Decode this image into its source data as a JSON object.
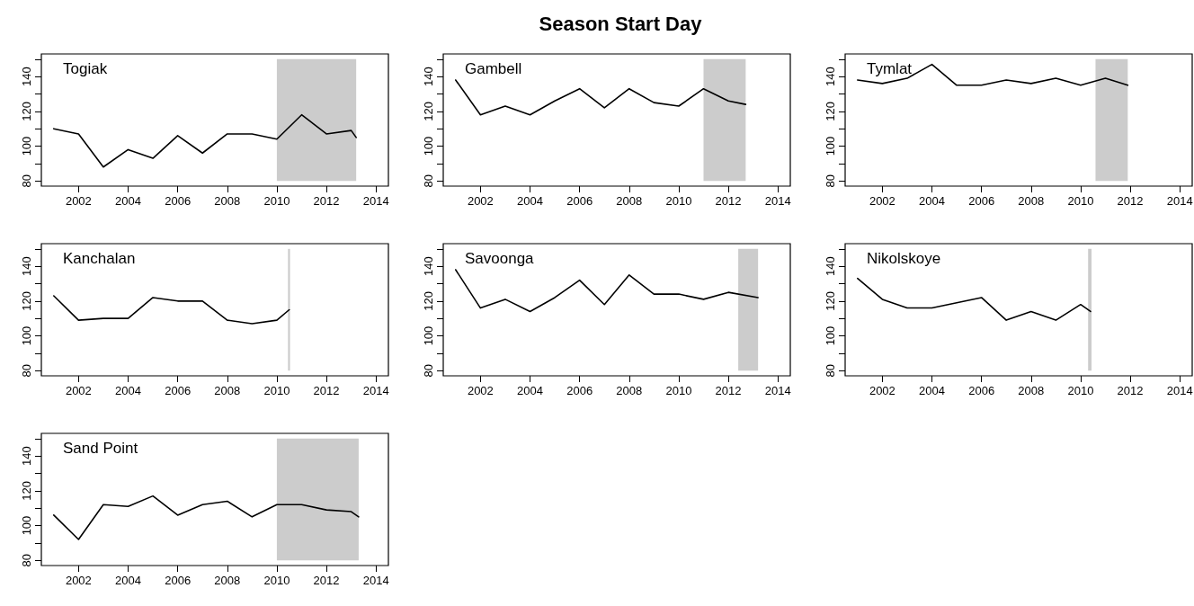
{
  "chart_data": [
    {
      "type": "line",
      "x": [
        2001,
        2002,
        2003,
        2004,
        2005,
        2006,
        2007,
        2008,
        2009,
        2010,
        2011,
        2012,
        2013,
        2013.2
      ],
      "series": [
        {
          "name": "Togiak",
          "color": "#000000",
          "values": [
            110,
            107,
            88,
            98,
            93,
            106,
            96,
            107,
            107,
            104,
            118,
            107,
            109,
            105
          ]
        }
      ],
      "xlim": [
        2000.5,
        2014.5
      ],
      "xticks": [
        2002,
        2004,
        2006,
        2008,
        2010,
        2012,
        2014
      ],
      "ylim": [
        77,
        153
      ],
      "yticks": [
        80,
        {
          "value": 90,
          "label": null
        },
        100,
        {
          "value": 110,
          "label": null
        },
        120,
        {
          "value": 130,
          "label": null
        },
        140,
        {
          "value": 150,
          "label": null
        }
      ],
      "bands": [
        {
          "axis": "x",
          "from": 2010,
          "to": 2013.2,
          "color": "#cccccc"
        }
      ]
    },
    {
      "type": "line",
      "title": "Season Start Day",
      "x": [
        2001,
        2002,
        2003,
        2004,
        2005,
        2006,
        2007,
        2008,
        2009,
        2010,
        2011,
        2012,
        2012.7
      ],
      "series": [
        {
          "name": "Gambell",
          "color": "#000000",
          "values": [
            138,
            118,
            123,
            118,
            126,
            133,
            122,
            133,
            125,
            123,
            133,
            126,
            124
          ]
        }
      ],
      "xlim": [
        2000.5,
        2014.5
      ],
      "xticks": [
        2002,
        2004,
        2006,
        2008,
        2010,
        2012,
        2014
      ],
      "ylim": [
        77,
        153
      ],
      "yticks": [
        80,
        {
          "value": 90,
          "label": null
        },
        100,
        {
          "value": 110,
          "label": null
        },
        120,
        {
          "value": 130,
          "label": null
        },
        140,
        {
          "value": 150,
          "label": null
        }
      ],
      "bands": [
        {
          "axis": "x",
          "from": 2011,
          "to": 2012.7,
          "color": "#cccccc"
        }
      ]
    },
    {
      "type": "line",
      "x": [
        2001,
        2002,
        2003,
        2004,
        2005,
        2006,
        2007,
        2008,
        2009,
        2010,
        2011,
        2011.9
      ],
      "series": [
        {
          "name": "Tymlat",
          "color": "#000000",
          "values": [
            138,
            136,
            139,
            147,
            135,
            135,
            138,
            136,
            139,
            135,
            139,
            135
          ]
        }
      ],
      "xlim": [
        2000.5,
        2014.5
      ],
      "xticks": [
        2002,
        2004,
        2006,
        2008,
        2010,
        2012,
        2014
      ],
      "ylim": [
        77,
        153
      ],
      "yticks": [
        80,
        {
          "value": 90,
          "label": null
        },
        100,
        {
          "value": 110,
          "label": null
        },
        120,
        {
          "value": 130,
          "label": null
        },
        140,
        {
          "value": 150,
          "label": null
        }
      ],
      "bands": [
        {
          "axis": "x",
          "from": 2010.6,
          "to": 2011.9,
          "color": "#cccccc"
        }
      ]
    },
    {
      "type": "line",
      "x": [
        2001,
        2002,
        2003,
        2004,
        2005,
        2006,
        2007,
        2008,
        2009,
        2010,
        2010.5
      ],
      "series": [
        {
          "name": "Kanchalan",
          "color": "#000000",
          "values": [
            123,
            109,
            110,
            110,
            122,
            120,
            120,
            109,
            107,
            109,
            115
          ]
        }
      ],
      "xlim": [
        2000.5,
        2014.5
      ],
      "xticks": [
        2002,
        2004,
        2006,
        2008,
        2010,
        2012,
        2014
      ],
      "ylim": [
        77,
        153
      ],
      "yticks": [
        80,
        {
          "value": 90,
          "label": null
        },
        100,
        {
          "value": 110,
          "label": null
        },
        120,
        {
          "value": 130,
          "label": null
        },
        140,
        {
          "value": 150,
          "label": null
        }
      ],
      "bands": [
        {
          "axis": "x",
          "from": 2010.45,
          "to": 2010.53,
          "color": "#cccccc"
        }
      ]
    },
    {
      "type": "line",
      "x": [
        2001,
        2002,
        2003,
        2004,
        2005,
        2006,
        2007,
        2008,
        2009,
        2010,
        2011,
        2012,
        2013.2
      ],
      "series": [
        {
          "name": "Savoonga",
          "color": "#000000",
          "values": [
            138,
            116,
            121,
            114,
            122,
            132,
            118,
            135,
            124,
            124,
            121,
            125,
            122
          ]
        }
      ],
      "xlim": [
        2000.5,
        2014.5
      ],
      "xticks": [
        2002,
        2004,
        2006,
        2008,
        2010,
        2012,
        2014
      ],
      "ylim": [
        77,
        153
      ],
      "yticks": [
        80,
        {
          "value": 90,
          "label": null
        },
        100,
        {
          "value": 110,
          "label": null
        },
        120,
        {
          "value": 130,
          "label": null
        },
        140,
        {
          "value": 150,
          "label": null
        }
      ],
      "bands": [
        {
          "axis": "x",
          "from": 2012.4,
          "to": 2013.2,
          "color": "#cccccc"
        }
      ]
    },
    {
      "type": "line",
      "x": [
        2001,
        2002,
        2003,
        2004,
        2005,
        2006,
        2007,
        2008,
        2009,
        2010,
        2010.4
      ],
      "series": [
        {
          "name": "Nikolskoye",
          "color": "#000000",
          "values": [
            133,
            121,
            116,
            116,
            119,
            122,
            109,
            114,
            109,
            118,
            114
          ]
        }
      ],
      "xlim": [
        2000.5,
        2014.5
      ],
      "xticks": [
        2002,
        2004,
        2006,
        2008,
        2010,
        2012,
        2014
      ],
      "ylim": [
        77,
        153
      ],
      "yticks": [
        80,
        {
          "value": 90,
          "label": null
        },
        100,
        {
          "value": 110,
          "label": null
        },
        120,
        {
          "value": 130,
          "label": null
        },
        140,
        {
          "value": 150,
          "label": null
        }
      ],
      "bands": [
        {
          "axis": "x",
          "from": 2010.3,
          "to": 2010.44,
          "color": "#cccccc"
        }
      ]
    },
    {
      "type": "line",
      "x": [
        2001,
        2002,
        2003,
        2004,
        2005,
        2006,
        2007,
        2008,
        2009,
        2010,
        2011,
        2012,
        2013,
        2013.3
      ],
      "series": [
        {
          "name": "Sand Point",
          "color": "#000000",
          "values": [
            106,
            92,
            112,
            111,
            117,
            106,
            112,
            114,
            105,
            112,
            112,
            109,
            108,
            105
          ]
        }
      ],
      "xlim": [
        2000.5,
        2014.5
      ],
      "xticks": [
        2002,
        2004,
        2006,
        2008,
        2010,
        2012,
        2014
      ],
      "ylim": [
        77,
        153
      ],
      "yticks": [
        80,
        {
          "value": 90,
          "label": null
        },
        100,
        {
          "value": 110,
          "label": null
        },
        120,
        {
          "value": 130,
          "label": null
        },
        140,
        {
          "value": 150,
          "label": null
        }
      ],
      "bands": [
        {
          "axis": "x",
          "from": 2010,
          "to": 2013.3,
          "color": "#cccccc"
        }
      ]
    }
  ]
}
